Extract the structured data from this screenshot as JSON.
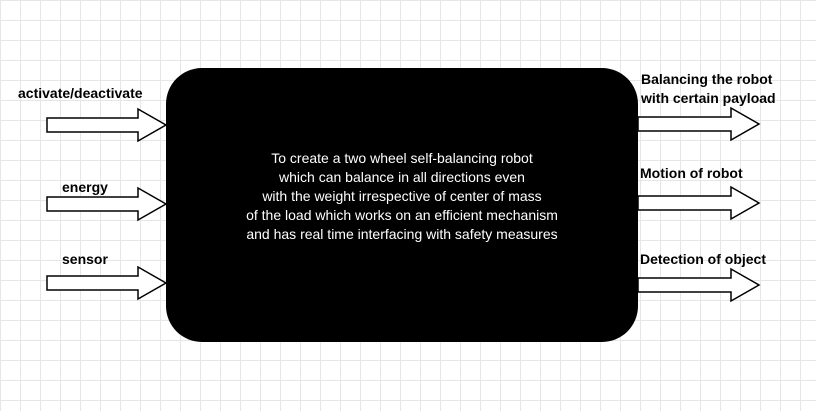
{
  "inputs": [
    {
      "label": "activate/deactivate"
    },
    {
      "label": "energy"
    },
    {
      "label": "sensor"
    }
  ],
  "process": {
    "lines": [
      "To create a two wheel self-balancing robot",
      "which can balance in all directions even",
      "with the weight irrespective of center of mass",
      "of the load which works on an efficient mechanism",
      "and has real time interfacing with safety measures"
    ]
  },
  "outputs": [
    {
      "lines": [
        "Balancing the robot",
        "with certain payload"
      ]
    },
    {
      "lines": [
        "Motion of robot"
      ]
    },
    {
      "lines": [
        "Detection of object"
      ]
    }
  ]
}
